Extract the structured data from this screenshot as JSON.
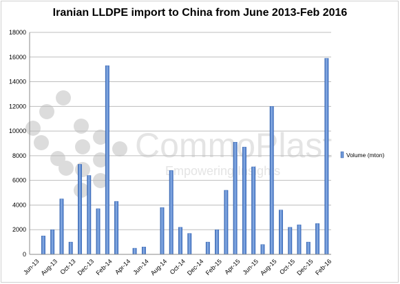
{
  "watermark": {
    "name": "CommoPlast",
    "tagline": "Empowering Insights"
  },
  "chart_data": {
    "type": "bar",
    "title": "Iranian LLDPE import to China from June 2013-Feb 2016",
    "xlabel": "",
    "ylabel": "",
    "ylim": [
      0,
      18000
    ],
    "yticks": [
      0,
      2000,
      4000,
      6000,
      8000,
      10000,
      12000,
      14000,
      16000,
      18000
    ],
    "grid": true,
    "legend_position": "right",
    "bar_color": "#4a7cc7",
    "categories": [
      "Jun-13",
      "Jul-13",
      "Aug-13",
      "Sep-13",
      "Oct-13",
      "Nov-13",
      "Dec-13",
      "Jan-14",
      "Feb-14",
      "Mar-14",
      "Apr-14",
      "May-14",
      "Jun-14",
      "Jul-14",
      "Aug-14",
      "Sep-14",
      "Oct-14",
      "Nov-14",
      "Dec-14",
      "Jan-15",
      "Feb-15",
      "Mar-15",
      "Apr-15",
      "May-15",
      "Jun-15",
      "Jul-15",
      "Aug-15",
      "Sep-15",
      "Oct-15",
      "Nov-15",
      "Dec-15",
      "Jan-16",
      "Feb-16"
    ],
    "tick_labels": [
      "Jun-13",
      "Aug-13",
      "Oct-13",
      "Dec-13",
      "Feb-14",
      "Apr-14",
      "Jun-14",
      "Aug-14",
      "Oct-14",
      "Dec-14",
      "Feb-15",
      "Apr-15",
      "Jun-15",
      "Aug-15",
      "Oct-15",
      "Dec-15",
      "Feb-16"
    ],
    "series": [
      {
        "name": "Volume (mton)",
        "values": [
          0,
          1500,
          2000,
          4500,
          1000,
          7300,
          6400,
          3700,
          15300,
          4300,
          0,
          500,
          600,
          0,
          3800,
          6800,
          2200,
          1700,
          0,
          1000,
          2000,
          5200,
          9100,
          8700,
          7100,
          800,
          12000,
          3600,
          2200,
          2400,
          1000,
          2500,
          15900
        ]
      }
    ]
  }
}
